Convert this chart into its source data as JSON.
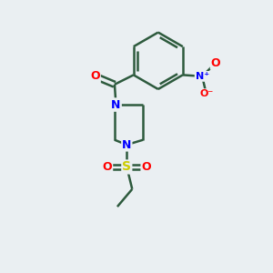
{
  "background_color": "#eaeff2",
  "bond_color": "#2d5a3d",
  "bond_width": 1.8,
  "atom_colors": {
    "O": "#ff0000",
    "N": "#0000ff",
    "S": "#cccc00",
    "C": "#2d5a3d"
  },
  "font_size": 9,
  "figsize": [
    3.0,
    3.0
  ],
  "dpi": 100
}
